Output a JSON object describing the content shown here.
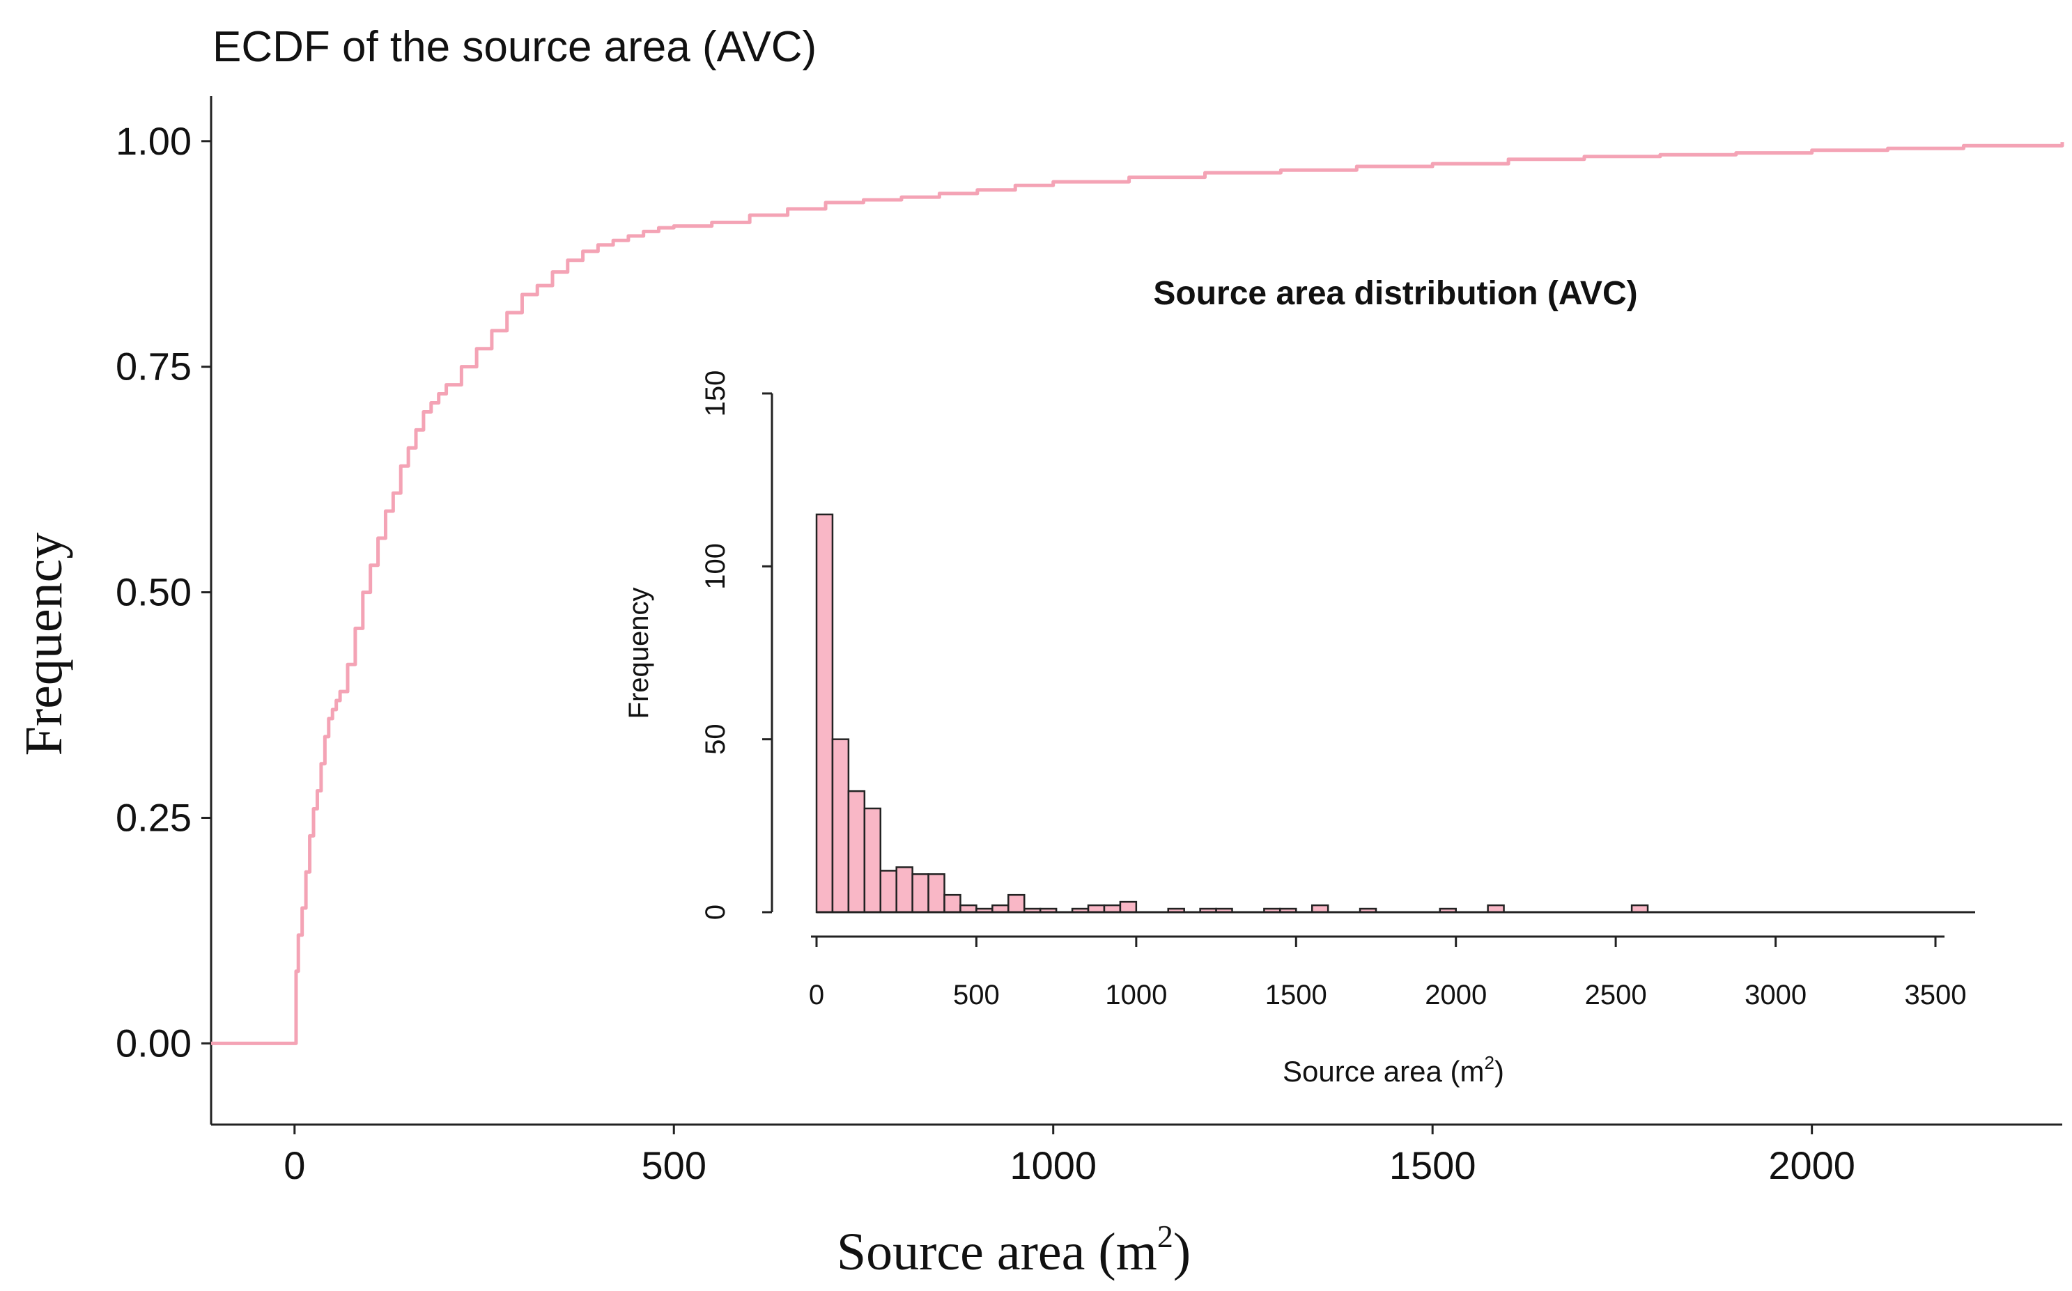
{
  "colors": {
    "ecdf_line": "#F4A3B5",
    "hist_fill": "#F9B7C6",
    "hist_stroke": "#222222",
    "axis": "#222222",
    "text": "#111111"
  },
  "chart_data": [
    {
      "type": "line",
      "title": "ECDF of the source area (AVC)",
      "xlabel": "Source area (m",
      "xlabel_sup": "2",
      "xlabel_close": ")",
      "ylabel": "Frequency",
      "xlim": [
        -110,
        2330
      ],
      "ylim": [
        -0.09,
        1.05
      ],
      "x_ticks": [
        0,
        500,
        1000,
        1500,
        2000
      ],
      "x_tick_labels": [
        "0",
        "500",
        "1000",
        "1500",
        "2000"
      ],
      "y_ticks": [
        0,
        0.25,
        0.5,
        0.75,
        1.0
      ],
      "y_tick_labels": [
        "0.00",
        "0.25",
        "0.50",
        "0.75",
        "1.00"
      ],
      "series": [
        {
          "name": "ECDF",
          "x": [
            -110,
            0,
            2,
            5,
            10,
            15,
            20,
            25,
            30,
            35,
            40,
            45,
            50,
            55,
            60,
            70,
            80,
            90,
            100,
            110,
            120,
            130,
            140,
            150,
            160,
            170,
            180,
            190,
            200,
            220,
            240,
            260,
            280,
            300,
            320,
            340,
            360,
            380,
            400,
            420,
            440,
            460,
            480,
            500,
            550,
            600,
            650,
            700,
            750,
            800,
            850,
            900,
            950,
            1000,
            1100,
            1200,
            1300,
            1400,
            1500,
            1600,
            1700,
            1800,
            1900,
            2000,
            2100,
            2200,
            2330
          ],
          "y": [
            0.0,
            0.0,
            0.08,
            0.12,
            0.15,
            0.19,
            0.23,
            0.26,
            0.28,
            0.31,
            0.34,
            0.36,
            0.37,
            0.38,
            0.39,
            0.42,
            0.46,
            0.5,
            0.53,
            0.56,
            0.59,
            0.61,
            0.64,
            0.66,
            0.68,
            0.7,
            0.71,
            0.72,
            0.73,
            0.75,
            0.77,
            0.79,
            0.81,
            0.83,
            0.84,
            0.855,
            0.868,
            0.878,
            0.885,
            0.89,
            0.895,
            0.9,
            0.904,
            0.906,
            0.91,
            0.918,
            0.925,
            0.932,
            0.935,
            0.938,
            0.942,
            0.946,
            0.951,
            0.955,
            0.96,
            0.965,
            0.968,
            0.972,
            0.975,
            0.98,
            0.983,
            0.985,
            0.987,
            0.99,
            0.992,
            0.995,
            0.999
          ]
        }
      ]
    },
    {
      "type": "bar",
      "title": "Source area distribution (AVC)",
      "xlabel": "Source area (m",
      "xlabel_sup": "2",
      "xlabel_close": ")",
      "ylabel": "Frequency",
      "xlim": [
        0,
        3600
      ],
      "ylim": [
        0,
        150
      ],
      "x_ticks": [
        0,
        500,
        1000,
        1500,
        2000,
        2500,
        3000,
        3500
      ],
      "x_tick_labels": [
        "0",
        "500",
        "1000",
        "1500",
        "2000",
        "2500",
        "3000",
        "3500"
      ],
      "y_ticks": [
        0,
        50,
        100,
        150
      ],
      "y_tick_labels": [
        "0",
        "50",
        "100",
        "150"
      ],
      "bin_width": 50,
      "bin_starts": [
        0,
        50,
        100,
        150,
        200,
        250,
        300,
        350,
        400,
        450,
        500,
        550,
        600,
        650,
        700,
        750,
        800,
        850,
        900,
        950,
        1000,
        1050,
        1100,
        1150,
        1200,
        1250,
        1300,
        1350,
        1400,
        1450,
        1500,
        1550,
        1600,
        1650,
        1700,
        1750,
        1800,
        1850,
        1900,
        1950,
        2000,
        2050,
        2100,
        2150,
        2200,
        2250,
        2300,
        2350,
        2400,
        2450,
        2500,
        2550
      ],
      "values": [
        115,
        50,
        35,
        30,
        12,
        13,
        11,
        11,
        5,
        2,
        1,
        2,
        5,
        1,
        1,
        0,
        1,
        2,
        2,
        3,
        0,
        0,
        1,
        0,
        1,
        1,
        0,
        0,
        1,
        1,
        0,
        2,
        0,
        0,
        1,
        0,
        0,
        0,
        0,
        1,
        0,
        0,
        2,
        0,
        0,
        0,
        0,
        0,
        0,
        0,
        0,
        2
      ]
    }
  ]
}
